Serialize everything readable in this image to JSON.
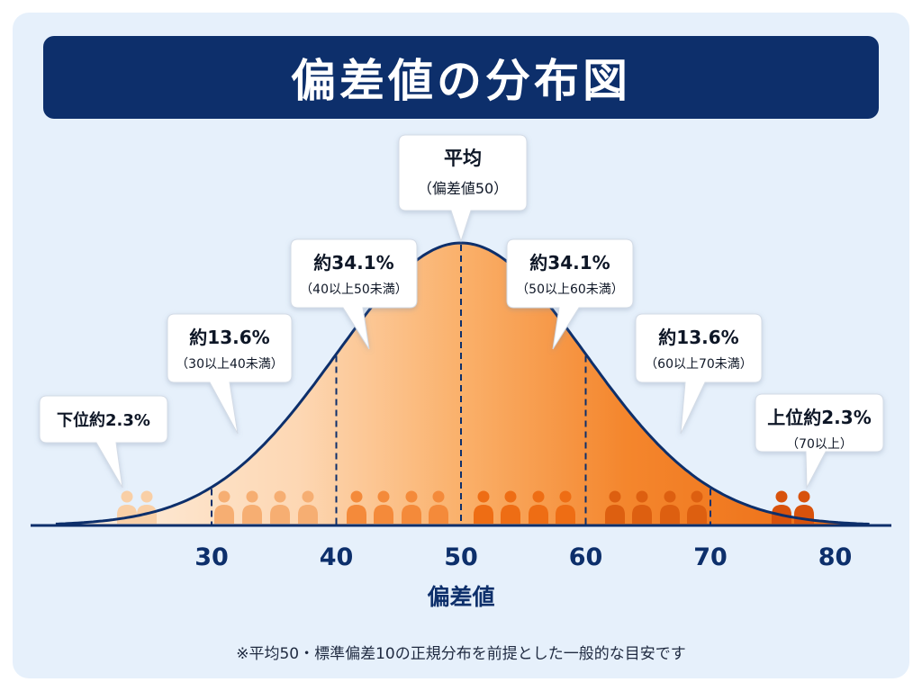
{
  "title": "偏差値の分布図",
  "footnote": "※平均50・標準偏差10の正規分布を前提とした一般的な目安です",
  "colors": {
    "title_bg": "#0d2f6b",
    "panel_bg": "#e6f0fb",
    "curve": "#0d2f6b",
    "band_fills": [
      "#fde7d2",
      "#fde0c6",
      "#fbc38e",
      "#f9a55a",
      "#f48a2e",
      "#ee761b"
    ]
  },
  "chart_data": {
    "type": "area",
    "distribution": "normal",
    "mean": 50,
    "sd": 10,
    "xlim": [
      20,
      80
    ],
    "xlabel": "偏差値",
    "ticks": [
      30,
      40,
      50,
      60,
      70,
      80
    ],
    "bands": [
      {
        "from": 20,
        "to": 30,
        "label": "下位約2.3%",
        "range_label": "",
        "people": 2,
        "color": "#f9cfa6"
      },
      {
        "from": 30,
        "to": 40,
        "label": "約13.6%",
        "range_label": "（30以上40未満）",
        "people": 4,
        "color": "#f6ae72"
      },
      {
        "from": 40,
        "to": 50,
        "label": "約34.1%",
        "range_label": "（40以上50未満）",
        "people": 4,
        "color": "#f48a3a"
      },
      {
        "from": 50,
        "to": 60,
        "label": "約34.1%",
        "range_label": "（50以上60未満）",
        "people": 4,
        "color": "#ee6d14"
      },
      {
        "from": 60,
        "to": 70,
        "label": "約13.6%",
        "range_label": "（60以上70未満）",
        "people": 4,
        "color": "#dd5f10"
      },
      {
        "from": 70,
        "to": 80,
        "label": "上位約2.3%",
        "range_label": "（70以上）",
        "people": 2,
        "color": "#d8520c"
      }
    ],
    "mean_label": "平均",
    "mean_sublabel": "（偏差値50）"
  }
}
